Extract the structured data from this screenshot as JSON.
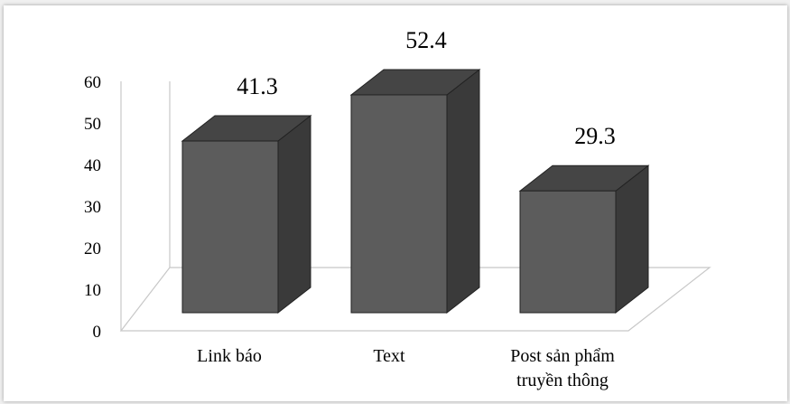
{
  "chart_data": {
    "type": "bar",
    "style": "3d-column",
    "categories": [
      "Link báo",
      "Text",
      "Post sản phẩm truyền thông"
    ],
    "category_lines": [
      [
        "Link báo"
      ],
      [
        "Text"
      ],
      [
        "Post sản phẩm",
        "truyền thông"
      ]
    ],
    "values": [
      41.3,
      52.4,
      29.3
    ],
    "value_labels": [
      "41.3",
      "52.4",
      "29.3"
    ],
    "yticks": [
      0,
      10,
      20,
      30,
      40,
      50,
      60
    ],
    "ylim": [
      0,
      60
    ],
    "grid": false,
    "colors": {
      "front": "#5c5c5c",
      "top": "#454545",
      "side": "#3a3a3a",
      "edge": "#222222",
      "floor": "#c8c8c8"
    }
  }
}
